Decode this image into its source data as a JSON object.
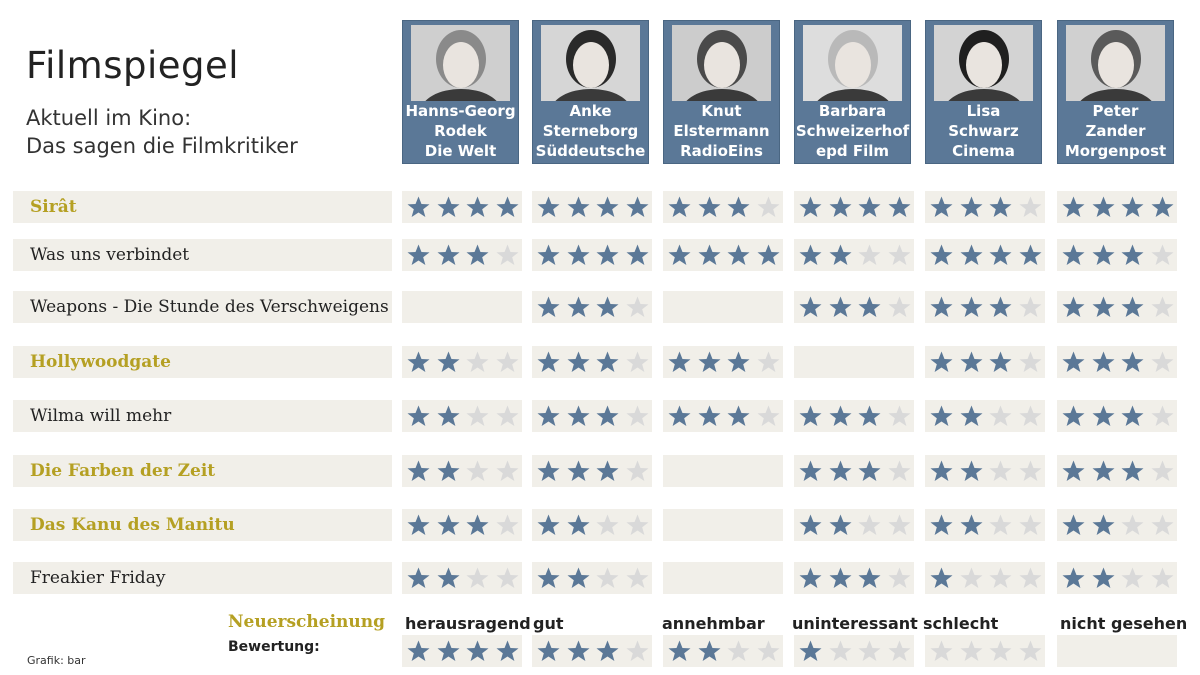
{
  "title": "Filmspiegel",
  "subtitle_line1": "Aktuell im Kino:",
  "subtitle_line2": "Das sagen die Filmkritiker",
  "colors": {
    "star_filled": "#5b7897",
    "star_empty": "#d9d9d9",
    "new_release": "#b5a023",
    "header_bg": "#5b7897",
    "row_bg": "#f1efe9"
  },
  "critics": [
    {
      "line1": "Hanns-Georg",
      "line2": "Rodek",
      "outlet": "Die Welt"
    },
    {
      "line1": "Anke",
      "line2": "Sterneborg",
      "outlet": "Süddeutsche"
    },
    {
      "line1": "Knut",
      "line2": "Elstermann",
      "outlet": "RadioEins"
    },
    {
      "line1": "Barbara",
      "line2": "Schweizerhof",
      "outlet": "epd Film"
    },
    {
      "line1": "Lisa",
      "line2": "Schwarz",
      "outlet": "Cinema"
    },
    {
      "line1": "Peter",
      "line2": "Zander",
      "outlet": "Morgenpost"
    }
  ],
  "films": [
    {
      "title": "Sirât",
      "new": true,
      "ratings": [
        4,
        4,
        3,
        4,
        3,
        4
      ]
    },
    {
      "title": "Was uns verbindet",
      "new": false,
      "ratings": [
        3,
        4,
        4,
        2,
        4,
        3
      ]
    },
    {
      "title": "Weapons - Die Stunde des Verschweigens",
      "new": false,
      "ratings": [
        null,
        3,
        null,
        3,
        3,
        3
      ]
    },
    {
      "title": "Hollywoodgate",
      "new": true,
      "ratings": [
        2,
        3,
        3,
        null,
        3,
        3
      ]
    },
    {
      "title": "Wilma will mehr",
      "new": false,
      "ratings": [
        2,
        3,
        3,
        3,
        2,
        3
      ]
    },
    {
      "title": "Die Farben der Zeit",
      "new": true,
      "ratings": [
        2,
        3,
        null,
        3,
        2,
        3
      ]
    },
    {
      "title": "Das Kanu des Manitu",
      "new": true,
      "ratings": [
        3,
        2,
        null,
        2,
        2,
        2
      ]
    },
    {
      "title": "Freakier Friday",
      "new": false,
      "ratings": [
        2,
        2,
        null,
        3,
        1,
        2
      ]
    }
  ],
  "legend": {
    "new_release_label": "Neuerscheinung",
    "rating_label": "Bewertung:",
    "levels": [
      {
        "label": "herausragend",
        "stars": 4
      },
      {
        "label": "gut",
        "stars": 3
      },
      {
        "label": "annehmbar",
        "stars": 2
      },
      {
        "label": "uninteressant",
        "stars": 1
      },
      {
        "label": "schlecht",
        "stars": 0
      },
      {
        "label": "nicht gesehen",
        "stars": null
      }
    ]
  },
  "source": "Grafik: bar"
}
